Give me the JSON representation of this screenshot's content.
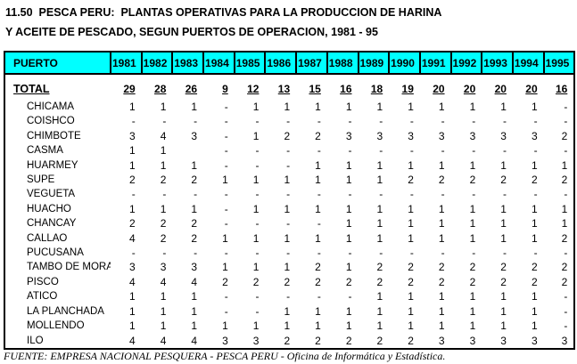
{
  "colors": {
    "header_bg": "#00ffff",
    "border": "#000000",
    "text": "#000000"
  },
  "title": {
    "line1": "11.50  PESCA PERU:  PLANTAS OPERATIVAS PARA LA PRODUCCION DE HARINA",
    "line2": "Y ACEITE DE PESCADO, SEGUN PUERTOS DE OPERACION, 1981 - 95"
  },
  "table": {
    "header": {
      "puerto_label": "PUERTO",
      "years": [
        "1981",
        "1982",
        "1983",
        "1984",
        "1985",
        "1986",
        "1987",
        "1988",
        "1989",
        "1990",
        "1991",
        "1992",
        "1993",
        "1994",
        "1995"
      ]
    },
    "total_row": {
      "label": "TOTAL",
      "values": [
        "29",
        "28",
        "26",
        "9",
        "12",
        "13",
        "15",
        "16",
        "18",
        "19",
        "20",
        "20",
        "20",
        "20",
        "16"
      ]
    },
    "rows": [
      {
        "label": "CHICAMA",
        "values": [
          "1",
          "1",
          "1",
          "-",
          "1",
          "1",
          "1",
          "1",
          "1",
          "1",
          "1",
          "1",
          "1",
          "1",
          "-"
        ]
      },
      {
        "label": "COISHCO",
        "values": [
          "-",
          "-",
          "-",
          "-",
          "-",
          "-",
          "-",
          "-",
          "-",
          "-",
          "-",
          "-",
          "-",
          "-",
          "-"
        ]
      },
      {
        "label": "CHIMBOTE",
        "values": [
          "3",
          "4",
          "3",
          "-",
          "1",
          "2",
          "2",
          "3",
          "3",
          "3",
          "3",
          "3",
          "3",
          "3",
          "2"
        ]
      },
      {
        "label": "CASMA",
        "values": [
          "1",
          "1",
          "",
          "-",
          "-",
          "-",
          "-",
          "-",
          "-",
          "-",
          "-",
          "-",
          "-",
          "-",
          "-"
        ]
      },
      {
        "label": "HUARMEY",
        "values": [
          "1",
          "1",
          "1",
          "-",
          "-",
          "-",
          "1",
          "1",
          "1",
          "1",
          "1",
          "1",
          "1",
          "1",
          "1"
        ]
      },
      {
        "label": "SUPE",
        "values": [
          "2",
          "2",
          "2",
          "1",
          "1",
          "1",
          "1",
          "1",
          "1",
          "2",
          "2",
          "2",
          "2",
          "2",
          "2"
        ]
      },
      {
        "label": "VEGUETA",
        "values": [
          "-",
          "-",
          "-",
          "-",
          "-",
          "-",
          "-",
          "-",
          "-",
          "-",
          "-",
          "-",
          "-",
          "-",
          "-"
        ]
      },
      {
        "label": "HUACHO",
        "values": [
          "1",
          "1",
          "1",
          "-",
          "1",
          "1",
          "1",
          "1",
          "1",
          "1",
          "1",
          "1",
          "1",
          "1",
          "1"
        ]
      },
      {
        "label": "CHANCAY",
        "values": [
          "2",
          "2",
          "2",
          "-",
          "-",
          "-",
          "-",
          "1",
          "1",
          "1",
          "1",
          "1",
          "1",
          "1",
          "1"
        ]
      },
      {
        "label": "CALLAO",
        "values": [
          "4",
          "2",
          "2",
          "1",
          "1",
          "1",
          "1",
          "1",
          "1",
          "1",
          "1",
          "1",
          "1",
          "1",
          "2"
        ]
      },
      {
        "label": "PUCUSANA",
        "values": [
          "-",
          "-",
          "-",
          "-",
          "-",
          "-",
          "-",
          "-",
          "-",
          "-",
          "-",
          "-",
          "-",
          "-",
          "-"
        ]
      },
      {
        "label": "TAMBO DE MORA",
        "values": [
          "3",
          "3",
          "3",
          "1",
          "1",
          "1",
          "2",
          "1",
          "2",
          "2",
          "2",
          "2",
          "2",
          "2",
          "2"
        ]
      },
      {
        "label": "PISCO",
        "values": [
          "4",
          "4",
          "4",
          "2",
          "2",
          "2",
          "2",
          "2",
          "2",
          "2",
          "2",
          "2",
          "2",
          "2",
          "2"
        ]
      },
      {
        "label": "ATICO",
        "values": [
          "1",
          "1",
          "1",
          "-",
          "-",
          "-",
          "-",
          "-",
          "1",
          "1",
          "1",
          "1",
          "1",
          "1",
          "-"
        ]
      },
      {
        "label": "LA PLANCHADA",
        "values": [
          "1",
          "1",
          "1",
          "-",
          "-",
          "1",
          "1",
          "1",
          "1",
          "1",
          "1",
          "1",
          "1",
          "1",
          "-"
        ]
      },
      {
        "label": "MOLLENDO",
        "values": [
          "1",
          "1",
          "1",
          "1",
          "1",
          "1",
          "1",
          "1",
          "1",
          "1",
          "1",
          "1",
          "1",
          "1",
          "-"
        ]
      },
      {
        "label": "ILO",
        "values": [
          "4",
          "4",
          "4",
          "3",
          "3",
          "2",
          "2",
          "2",
          "2",
          "2",
          "3",
          "3",
          "3",
          "3",
          "3"
        ]
      }
    ]
  },
  "footer": {
    "source": "FUENTE: EMPRESA NACIONAL PESQUERA - PESCA PERU - Oficina de Informática y Estadística."
  }
}
